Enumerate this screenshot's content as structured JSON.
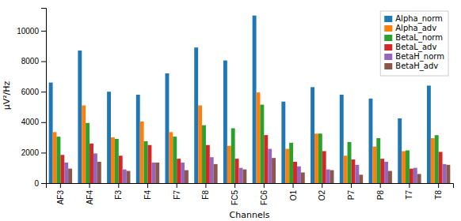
{
  "chart_data": {
    "type": "bar",
    "categories": [
      "AF3",
      "AF4",
      "F3",
      "F4",
      "F7",
      "F8",
      "FC5",
      "FC6",
      "O1",
      "O2",
      "P7",
      "P8",
      "T7",
      "T8"
    ],
    "series": [
      {
        "name": "Alpha_norm",
        "color": "#1f77b4",
        "values": [
          6600,
          8700,
          6000,
          5800,
          7200,
          8900,
          8050,
          11000,
          5350,
          6300,
          5800,
          5550,
          4250,
          6400
        ]
      },
      {
        "name": "Alpha_adv",
        "color": "#ff7f0e",
        "values": [
          3350,
          5100,
          3000,
          4050,
          3350,
          5100,
          2450,
          5950,
          2250,
          3250,
          1800,
          2400,
          2100,
          2950
        ]
      },
      {
        "name": "BetaL_norm",
        "color": "#2ca02c",
        "values": [
          3050,
          3950,
          2900,
          2750,
          3050,
          3800,
          3600,
          5150,
          2650,
          3250,
          2700,
          2950,
          2150,
          3150
        ]
      },
      {
        "name": "BetaL_adv",
        "color": "#d62728",
        "values": [
          1850,
          2600,
          1800,
          2500,
          1600,
          2500,
          1600,
          3150,
          1400,
          2100,
          1550,
          1600,
          950,
          2050
        ]
      },
      {
        "name": "BetaH_norm",
        "color": "#9467bd",
        "values": [
          1350,
          1950,
          900,
          1350,
          1350,
          1700,
          1000,
          2250,
          1100,
          900,
          1200,
          1400,
          1000,
          1250
        ]
      },
      {
        "name": "BetaH_adv",
        "color": "#8c564b",
        "values": [
          950,
          1400,
          800,
          1350,
          850,
          1250,
          900,
          1650,
          700,
          850,
          550,
          800,
          600,
          1200
        ]
      }
    ],
    "xlabel": "Channels",
    "ylabel": "μV²/Hz",
    "ylim": [
      0,
      11500
    ],
    "yticks": [
      0,
      2000,
      4000,
      6000,
      8000,
      10000
    ],
    "legend": "upper right"
  }
}
